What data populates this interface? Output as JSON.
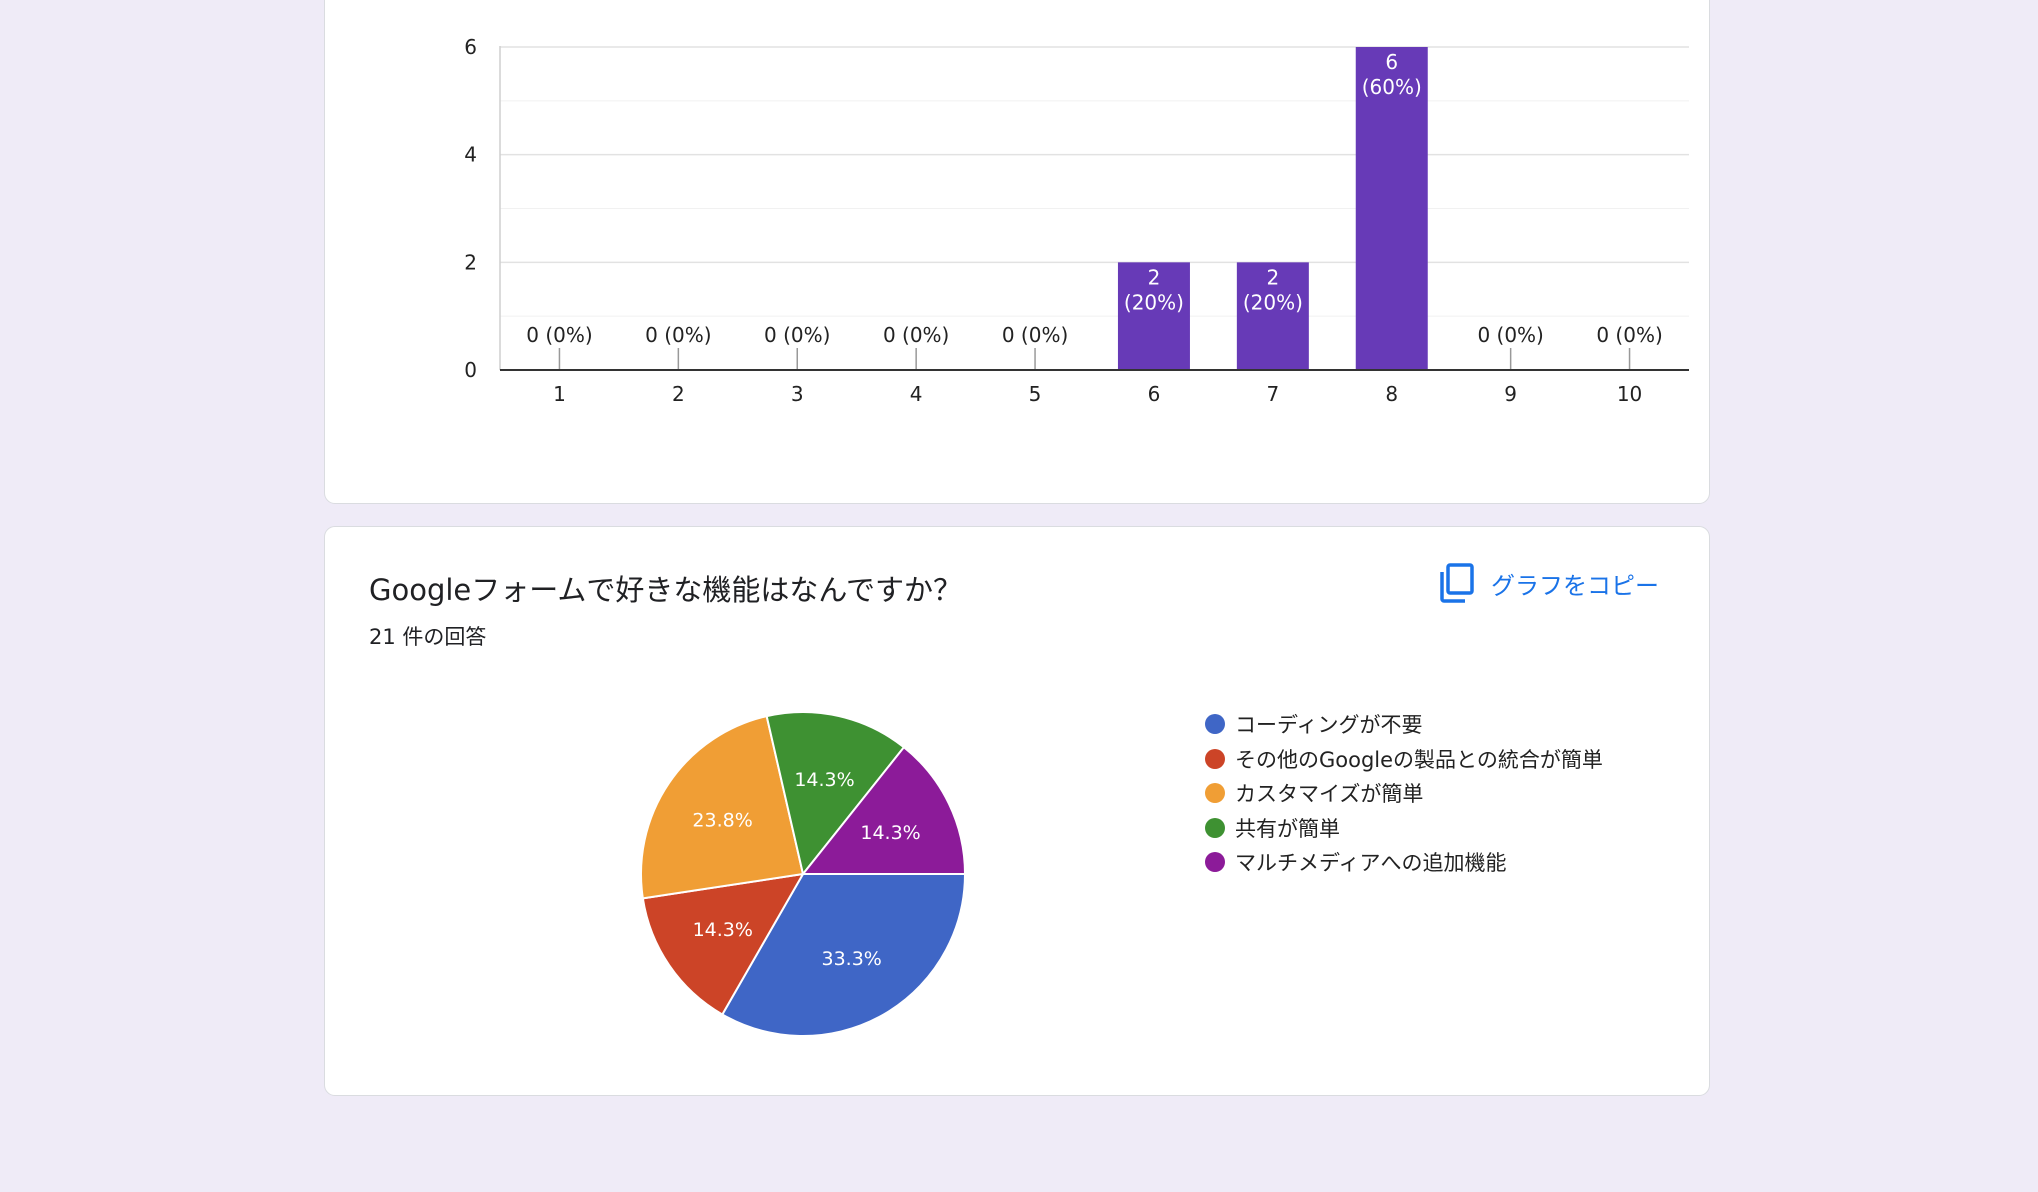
{
  "bar_card": {
    "chart_data": {
      "type": "bar",
      "categories": [
        "1",
        "2",
        "3",
        "4",
        "5",
        "6",
        "7",
        "8",
        "9",
        "10"
      ],
      "values": [
        0,
        0,
        0,
        0,
        0,
        2,
        2,
        6,
        0,
        0
      ],
      "percent_labels": [
        "0 (0%)",
        "0 (0%)",
        "0 (0%)",
        "0 (0%)",
        "0 (0%)",
        "2\n(20%)",
        "2\n(20%)",
        "6\n(60%)",
        "0 (0%)",
        "0 (0%)"
      ],
      "yticks": [
        0,
        2,
        4,
        6
      ],
      "ylim": [
        0,
        6
      ],
      "bar_color": "#673ab7",
      "grid": true
    }
  },
  "pie_card": {
    "title": "Googleフォームで好きな機能はなんですか？",
    "response_count": "21 件の回答",
    "copy_button_label": "グラフをコピー",
    "chart_data": {
      "type": "pie",
      "slices": [
        {
          "label": "コーディングが不要",
          "value": 33.3,
          "color": "#3f66c6",
          "text": "33.3%"
        },
        {
          "label": "その他のGoogleの製品との統合が簡単",
          "value": 14.3,
          "color": "#cc4427",
          "text": "14.3%"
        },
        {
          "label": "カスタマイズが簡単",
          "value": 23.8,
          "color": "#f09e35",
          "text": "23.8%"
        },
        {
          "label": "共有が簡単",
          "value": 14.3,
          "color": "#3e9132",
          "text": "14.3%"
        },
        {
          "label": "マルチメディアへの追加機能",
          "value": 14.3,
          "color": "#8c1b99",
          "text": "14.3%"
        }
      ],
      "legend_position": "right"
    }
  }
}
